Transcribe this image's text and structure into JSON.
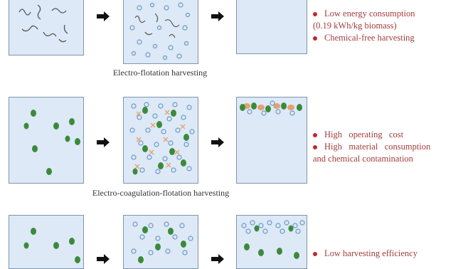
{
  "colors": {
    "box_fill": "#dde9f6",
    "box_border": "#7e95ad",
    "cell": "#3b8a3b",
    "bubble": "#6b98c6",
    "floc": "#e3a172",
    "fiber": "#555555",
    "note_text": "#a33c3c",
    "bullet": "#c2272d"
  },
  "icons": {
    "arrow": "arrow-right-icon",
    "bullet": "bullet-dot-icon"
  },
  "rows": [
    {
      "caption": "Electro-flotation harvesting",
      "notes": [
        {
          "text": "Low energy consumption",
          "cont": "(0.19 kWh/kg biomass)"
        },
        {
          "text": "Chemical-free harvesting"
        }
      ]
    },
    {
      "caption": "Electro-coagulation-flotation harvesting",
      "notes": [
        {
          "text": "High   operating   cost"
        },
        {
          "text": "High   material   consumption",
          "cont": "and chemical contamination"
        }
      ]
    },
    {
      "caption": "",
      "notes": [
        {
          "text": "Low harvesting efficiency"
        }
      ]
    }
  ]
}
